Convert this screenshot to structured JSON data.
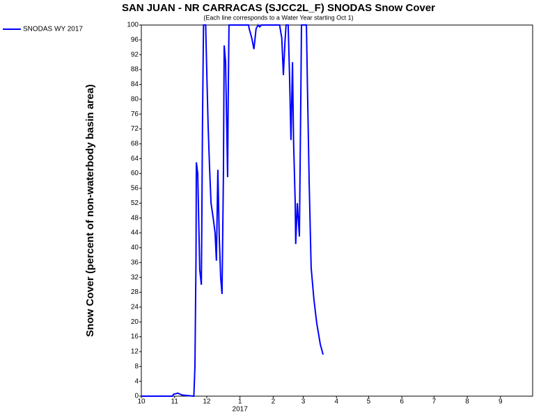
{
  "chart_data": {
    "type": "line",
    "title": "SAN JUAN - NR CARRACAS (SJCC2L_F) SNODAS Snow Cover",
    "subtitle": "(Each line corresponds to a Water Year starting Oct 1)",
    "y_label": "Snow Cover (percent of non-waterbody basin area)",
    "x_annotation": "2017",
    "x": [
      0,
      29,
      30,
      34,
      38,
      49,
      50,
      51,
      51.3,
      52.6,
      54.5,
      56,
      56.5,
      57,
      58,
      60,
      61,
      62.3,
      63.6,
      65,
      67,
      68.8,
      70,
      71.4,
      72.7,
      74,
      75.3,
      76.6,
      77.3,
      78.6,
      79.9,
      80.5,
      81,
      81.8,
      100,
      100.6,
      103,
      105,
      107,
      109,
      110.4,
      112,
      129,
      131,
      132.5,
      134,
      135,
      137,
      138.3,
      139.6,
      141,
      142,
      143.5,
      144,
      145.5,
      147.4,
      148.7,
      149.4,
      154,
      155,
      156.5,
      158.4,
      161,
      163.6,
      166.9,
      169.5
    ],
    "series": [
      {
        "name": "SNODAS WY 2017",
        "color": "#0000ff",
        "values": [
          0,
          0,
          0.5,
          0.8,
          0.3,
          0,
          8,
          37,
          63,
          60,
          34,
          30,
          50,
          73,
          100,
          100,
          88,
          73,
          62,
          52,
          48,
          44,
          36.5,
          61,
          43,
          32,
          27.5,
          60,
          94.5,
          90,
          69,
          59,
          79,
          100,
          100,
          99,
          96.5,
          93.5,
          99,
          100,
          99.5,
          100,
          100,
          96.5,
          86.5,
          95.5,
          100,
          100,
          86,
          69,
          90,
          69,
          52,
          41,
          52,
          43,
          79.5,
          100,
          100,
          82,
          58,
          34.6,
          26,
          19.7,
          14,
          11.2
        ]
      }
    ],
    "xlim": [
      0,
      365
    ],
    "xticks": [
      {
        "value": 0,
        "label": "10"
      },
      {
        "value": 31,
        "label": "11"
      },
      {
        "value": 61,
        "label": "12"
      },
      {
        "value": 92,
        "label": "1"
      },
      {
        "value": 123,
        "label": "2"
      },
      {
        "value": 151,
        "label": "3"
      },
      {
        "value": 182,
        "label": "4"
      },
      {
        "value": 212,
        "label": "5"
      },
      {
        "value": 243,
        "label": "6"
      },
      {
        "value": 273,
        "label": "7"
      },
      {
        "value": 304,
        "label": "8"
      },
      {
        "value": 335,
        "label": "9"
      }
    ],
    "ylim": [
      0,
      100
    ],
    "yticks": [
      0,
      4,
      8,
      12,
      16,
      20,
      24,
      28,
      32,
      36,
      40,
      44,
      48,
      52,
      56,
      60,
      64,
      68,
      72,
      76,
      80,
      84,
      88,
      92,
      96,
      100
    ],
    "grid": false,
    "legend": "top-left"
  }
}
